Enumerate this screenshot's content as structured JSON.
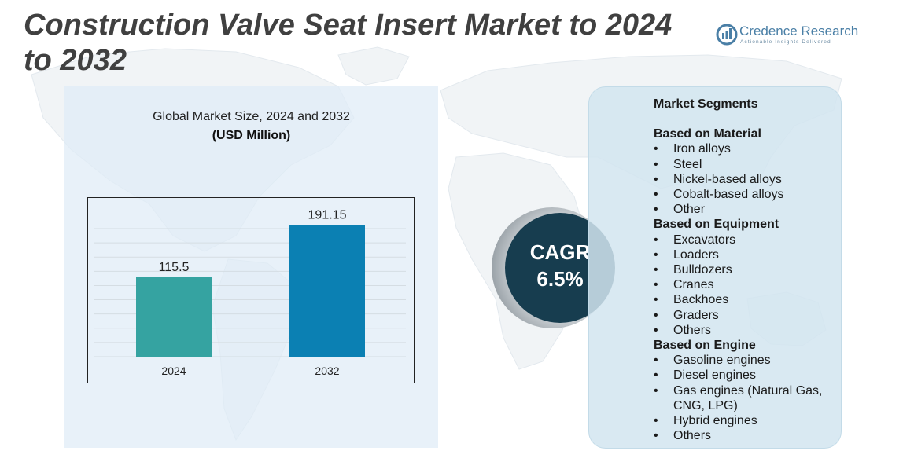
{
  "page": {
    "title": "Construction Valve Seat Insert Market to 2024 to 2032"
  },
  "logo": {
    "name": "Credence Research",
    "tagline": "Actionable Insights Delivered",
    "color": "#4a7fa6"
  },
  "chart_data": {
    "type": "bar",
    "title": "Global Market Size,  2024 and 2032",
    "subtitle": "(USD Million)",
    "categories": [
      "2024",
      "2032"
    ],
    "values": [
      115.5,
      191.15
    ],
    "data_labels": [
      "115.5",
      "191.15"
    ],
    "bar_colors": [
      "#35a3a1",
      "#0b80b3"
    ],
    "ylim": [
      0,
      200
    ],
    "grid": true
  },
  "cagr": {
    "label": "CAGR",
    "value": "6.5%",
    "color": "#173d4f"
  },
  "segments": {
    "heading": "Market Segments",
    "groups": [
      {
        "title": "Based on Material",
        "items": [
          "Iron alloys",
          "Steel",
          "Nickel-based alloys",
          "Cobalt-based alloys",
          "Other"
        ]
      },
      {
        "title": "Based on Equipment",
        "items": [
          "Excavators",
          "Loaders",
          "Bulldozers",
          "Cranes",
          "Backhoes",
          "Graders",
          "Others"
        ]
      },
      {
        "title": "Based on Engine",
        "items": [
          "Gasoline engines",
          "Diesel engines",
          "Gas engines (Natural Gas, CNG, LPG)",
          "Hybrid engines",
          "Others"
        ]
      }
    ]
  }
}
